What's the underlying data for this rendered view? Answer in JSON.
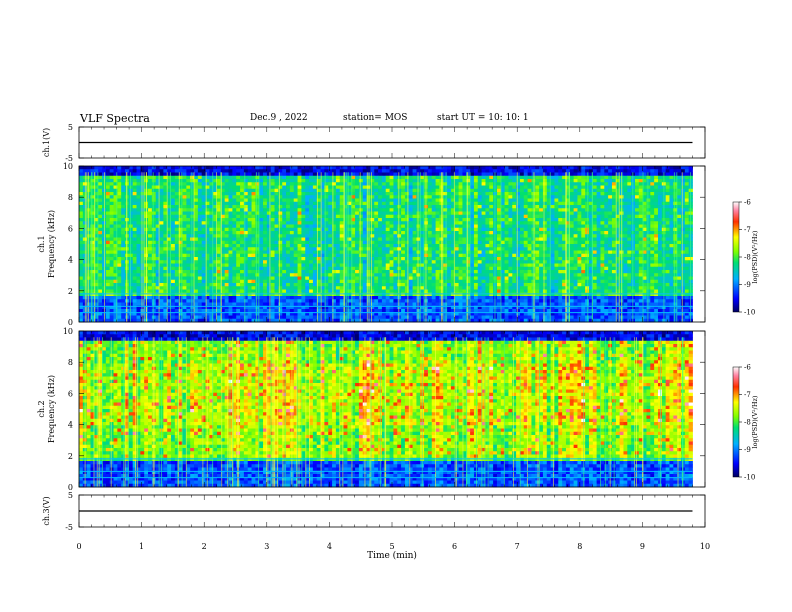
{
  "header": {
    "title": "VLF Spectra",
    "date": "Dec.9 , 2022",
    "station": "station= MOS",
    "start": "start UT =  10: 10: 1"
  },
  "chart_data": [
    {
      "type": "line",
      "ylabel": "ch.1(V)",
      "xlim": [
        0,
        10
      ],
      "ylim": [
        -5,
        5
      ],
      "yticks": [
        "5",
        "-5"
      ],
      "series": [
        {
          "x": [
            0,
            9.8
          ],
          "y": [
            0,
            0
          ]
        }
      ]
    },
    {
      "type": "heatmap",
      "ylabel": "ch.1\nFrequency (kHz)",
      "xlim": [
        0,
        10
      ],
      "ylim": [
        0,
        10
      ],
      "yticks": [
        "0",
        "2",
        "4",
        "6",
        "8",
        "10"
      ],
      "data_end_min": 9.8,
      "colorbar": {
        "label": "log(PSD)(V²/Hz)",
        "ticks": [
          "-6",
          "-7",
          "-8",
          "-9",
          "-10"
        ],
        "range": [
          -10,
          -6
        ]
      }
    },
    {
      "type": "heatmap",
      "ylabel": "ch.2\nFrequency (kHz)",
      "xlim": [
        0,
        10
      ],
      "ylim": [
        0,
        10
      ],
      "yticks": [
        "0",
        "2",
        "4",
        "6",
        "8",
        "10"
      ],
      "data_end_min": 9.8,
      "colorbar": {
        "label": "log(PSD)(V²/Hz)",
        "ticks": [
          "-6",
          "-7",
          "-8",
          "-9",
          "-10"
        ],
        "range": [
          -10,
          -6
        ]
      }
    },
    {
      "type": "line",
      "ylabel": "ch.3(V)",
      "xlim": [
        0,
        10
      ],
      "ylim": [
        -5,
        5
      ],
      "yticks": [
        "5",
        "-5"
      ],
      "series": [
        {
          "x": [
            0,
            9.8
          ],
          "y": [
            0,
            0
          ]
        }
      ]
    }
  ],
  "xaxis": {
    "label": "Time (min)",
    "ticks": [
      "0",
      "1",
      "2",
      "3",
      "4",
      "5",
      "6",
      "7",
      "8",
      "9",
      "10"
    ]
  }
}
